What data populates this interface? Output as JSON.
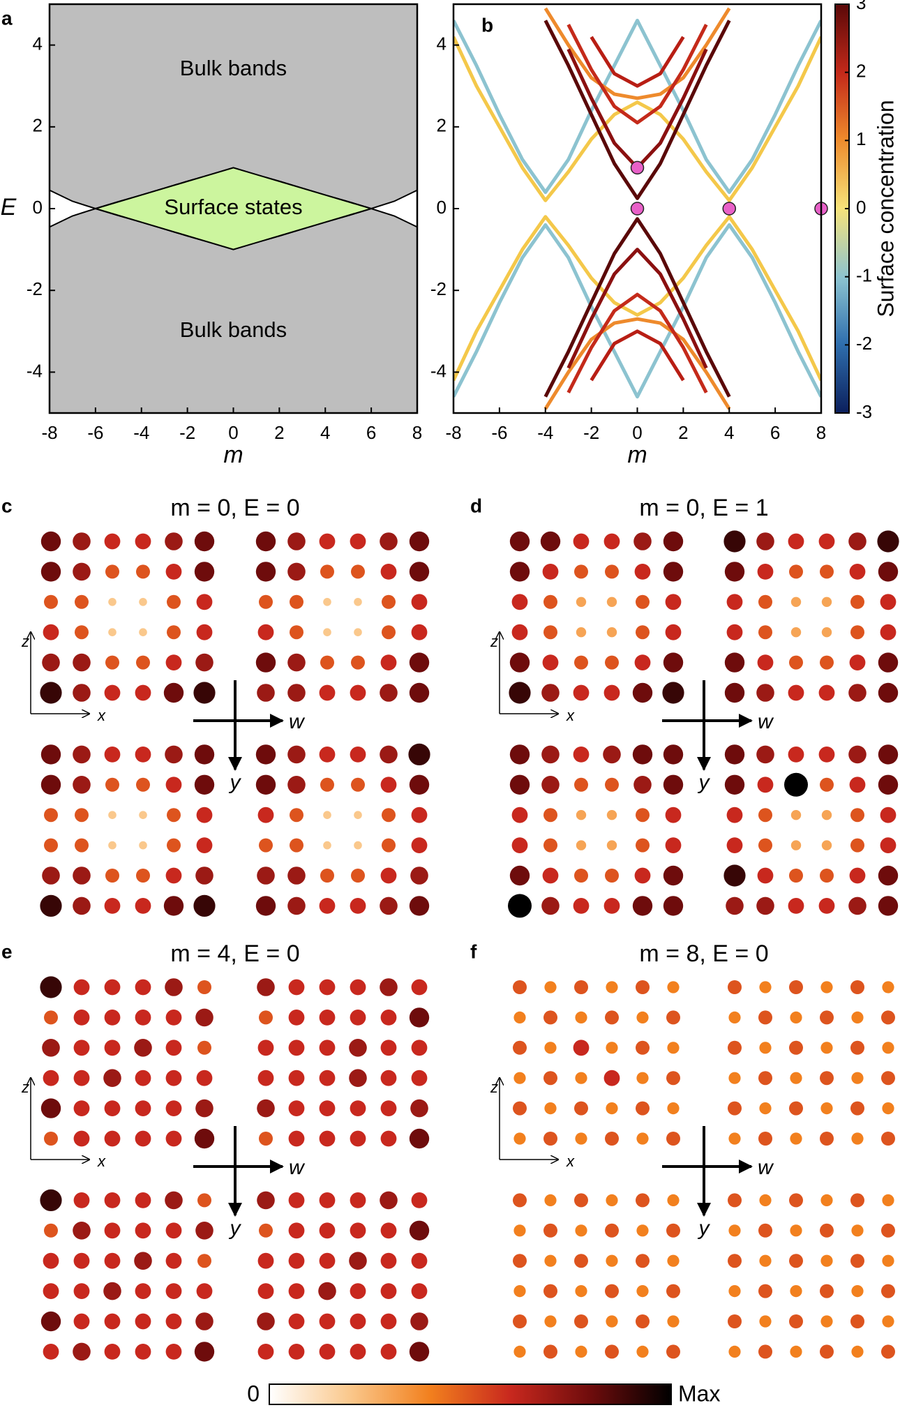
{
  "chart_data": [
    {
      "type": "phase",
      "panel_label": "a",
      "xlabel": "m",
      "ylabel": "E",
      "xlim": [
        -8,
        8
      ],
      "ylim": [
        -5,
        5
      ],
      "xticks": [
        -8,
        -6,
        -4,
        -2,
        0,
        2,
        4,
        6,
        8
      ],
      "yticks": [
        -4,
        -2,
        0,
        2,
        4
      ],
      "color": "#bebebe",
      "surface_color": "#ccf59e",
      "boundaries": [
        {
          "x": [
            -8,
            -7,
            -6,
            -5,
            -4,
            -3,
            -2,
            -1,
            0,
            1,
            2,
            3,
            4,
            5,
            6,
            7,
            8
          ],
          "values": [
            0.45,
            0.18,
            0,
            0.17,
            0.33,
            0.5,
            0.67,
            0.83,
            1,
            0.83,
            0.67,
            0.5,
            0.33,
            0.17,
            0,
            0.18,
            0.45
          ]
        },
        {
          "x": [
            -8,
            -7,
            -6,
            -5,
            -4,
            -3,
            -2,
            -1,
            0,
            1,
            2,
            3,
            4,
            5,
            6,
            7,
            8
          ],
          "values": [
            -0.45,
            -0.18,
            0,
            -0.17,
            -0.33,
            -0.5,
            -0.67,
            -0.83,
            -1,
            -0.83,
            -0.67,
            -0.5,
            -0.33,
            -0.17,
            0,
            -0.18,
            -0.45
          ]
        }
      ],
      "surface_states": {
        "x": [
          -6,
          0,
          6,
          0
        ],
        "values": [
          0,
          1,
          0,
          -1
        ]
      },
      "annotations": [
        "Bulk bands",
        "Surface states",
        "Bulk bands"
      ]
    },
    {
      "type": "bands",
      "panel_label": "b",
      "xlabel": "m",
      "xlim": [
        -8,
        8
      ],
      "ylim": [
        -5,
        5
      ],
      "xticks": [
        -8,
        -6,
        -4,
        -2,
        0,
        2,
        4,
        6,
        8
      ],
      "yticks": [
        -4,
        -2,
        0,
        2,
        4
      ],
      "x": [
        -8,
        -7,
        -6,
        -5,
        -4,
        -3,
        -2,
        -1,
        0,
        1,
        2,
        3,
        4,
        5,
        6,
        7,
        8
      ],
      "series": [
        {
          "color": "#8cc3d0",
          "values": [
            4.6,
            3.5,
            2.3,
            1.2,
            0.4,
            1.2,
            2.4,
            3.5,
            4.6,
            3.5,
            2.4,
            1.2,
            0.4,
            1.2,
            2.3,
            3.5,
            4.6
          ]
        },
        {
          "color": "#8cc3d0",
          "values": [
            -4.6,
            -3.5,
            -2.3,
            -1.2,
            -0.4,
            -1.2,
            -2.4,
            -3.5,
            -4.6,
            -3.5,
            -2.4,
            -1.2,
            -0.4,
            -1.2,
            -2.3,
            -3.5,
            -4.6
          ]
        },
        {
          "color": "#f4c84a",
          "values": [
            4.2,
            3.0,
            2.0,
            1.0,
            0.2,
            0.9,
            1.7,
            2.3,
            2.6,
            2.3,
            1.7,
            0.9,
            0.2,
            1.0,
            2.0,
            3.0,
            4.2
          ]
        },
        {
          "color": "#f4c84a",
          "values": [
            -4.2,
            -3.0,
            -2.0,
            -1.0,
            -0.2,
            -0.9,
            -1.7,
            -2.3,
            -2.6,
            -2.3,
            -1.7,
            -0.9,
            -0.2,
            -1.0,
            -2.0,
            -3.0,
            -4.2
          ]
        },
        {
          "color": "#ee8a2c",
          "values": [
            null,
            null,
            null,
            null,
            4.9,
            4.0,
            3.2,
            2.8,
            2.7,
            2.8,
            3.2,
            4.0,
            4.9,
            null,
            null,
            null,
            null
          ]
        },
        {
          "color": "#ee8a2c",
          "values": [
            null,
            null,
            null,
            null,
            -4.9,
            -4.0,
            -3.2,
            -2.8,
            -2.7,
            -2.8,
            -3.2,
            -4.0,
            -4.9,
            null,
            null,
            null,
            null
          ]
        },
        {
          "color": "#b81e14",
          "values": [
            null,
            null,
            null,
            null,
            null,
            null,
            4.2,
            3.3,
            3.0,
            3.3,
            4.2,
            null,
            null,
            null,
            null,
            null,
            null
          ]
        },
        {
          "color": "#b81e14",
          "values": [
            null,
            null,
            null,
            null,
            null,
            null,
            -4.2,
            -3.3,
            -3.0,
            -3.3,
            -4.2,
            null,
            null,
            null,
            null,
            null,
            null
          ]
        },
        {
          "color": "#c42a1a",
          "values": [
            null,
            null,
            null,
            null,
            null,
            4.5,
            3.4,
            2.5,
            2.1,
            2.5,
            3.4,
            4.5,
            null,
            null,
            null,
            null,
            null
          ]
        },
        {
          "color": "#c42a1a",
          "values": [
            null,
            null,
            null,
            null,
            null,
            -4.5,
            -3.4,
            -2.5,
            -2.1,
            -2.5,
            -3.4,
            -4.5,
            null,
            null,
            null,
            null,
            null
          ]
        },
        {
          "color": "#8b1010",
          "values": [
            null,
            null,
            null,
            null,
            null,
            3.9,
            2.7,
            1.6,
            1.0,
            1.6,
            2.7,
            3.9,
            null,
            null,
            null,
            null,
            null
          ]
        },
        {
          "color": "#8b1010",
          "values": [
            null,
            null,
            null,
            null,
            null,
            -3.9,
            -2.7,
            -1.6,
            -1.0,
            -1.6,
            -2.7,
            -3.9,
            null,
            null,
            null,
            null,
            null
          ]
        },
        {
          "color": "#5a0808",
          "values": [
            null,
            null,
            null,
            null,
            4.6,
            3.5,
            2.3,
            1.1,
            0.25,
            1.1,
            2.3,
            3.5,
            4.6,
            null,
            null,
            null,
            null
          ]
        },
        {
          "color": "#5a0808",
          "values": [
            null,
            null,
            null,
            null,
            -4.6,
            -3.5,
            -2.3,
            -1.1,
            -0.25,
            -1.1,
            -2.3,
            -3.5,
            -4.6,
            null,
            null,
            null,
            null
          ]
        }
      ],
      "points": {
        "x": [
          0,
          0,
          4,
          8
        ],
        "values": [
          1,
          0,
          0,
          0
        ],
        "color": "#e860c8"
      },
      "colorbar": {
        "label": "Surface concentration",
        "ylim": [
          -3,
          3
        ],
        "yticks": [
          -3,
          -2,
          -1,
          0,
          1,
          2,
          3
        ]
      }
    },
    {
      "type": "lattice",
      "panel_label": "c",
      "title": "m = 0, E = 0",
      "axis_labels": [
        "z",
        "x",
        "w",
        "y"
      ],
      "values": [
        [
          0.8,
          0.7,
          0.6,
          0.6,
          0.7,
          0.8,
          0.8,
          0.7,
          0.6,
          0.6,
          0.7,
          0.8
        ],
        [
          0.8,
          0.7,
          0.5,
          0.5,
          0.6,
          0.8,
          0.8,
          0.7,
          0.5,
          0.5,
          0.6,
          0.8
        ],
        [
          0.5,
          0.5,
          0.2,
          0.2,
          0.5,
          0.6,
          0.5,
          0.5,
          0.2,
          0.2,
          0.5,
          0.6
        ],
        [
          0.6,
          0.5,
          0.2,
          0.2,
          0.5,
          0.6,
          0.6,
          0.5,
          0.2,
          0.2,
          0.5,
          0.6
        ],
        [
          0.7,
          0.7,
          0.5,
          0.5,
          0.6,
          0.7,
          0.8,
          0.7,
          0.5,
          0.5,
          0.6,
          0.8
        ],
        [
          0.9,
          0.7,
          0.6,
          0.6,
          0.8,
          0.9,
          0.7,
          0.7,
          0.6,
          0.6,
          0.7,
          0.8
        ],
        [
          0.8,
          0.7,
          0.6,
          0.6,
          0.7,
          0.8,
          0.8,
          0.7,
          0.6,
          0.6,
          0.7,
          0.9
        ],
        [
          0.8,
          0.7,
          0.5,
          0.5,
          0.6,
          0.8,
          0.8,
          0.7,
          0.5,
          0.5,
          0.6,
          0.8
        ],
        [
          0.5,
          0.5,
          0.2,
          0.2,
          0.5,
          0.6,
          0.6,
          0.5,
          0.2,
          0.2,
          0.5,
          0.6
        ],
        [
          0.5,
          0.5,
          0.2,
          0.2,
          0.5,
          0.6,
          0.5,
          0.5,
          0.2,
          0.2,
          0.5,
          0.6
        ],
        [
          0.7,
          0.7,
          0.5,
          0.5,
          0.6,
          0.7,
          0.7,
          0.7,
          0.5,
          0.5,
          0.6,
          0.7
        ],
        [
          0.9,
          0.7,
          0.6,
          0.6,
          0.8,
          0.9,
          0.8,
          0.7,
          0.6,
          0.6,
          0.7,
          0.8
        ]
      ]
    },
    {
      "type": "lattice",
      "panel_label": "d",
      "title": "m = 0, E = 1",
      "axis_labels": [
        "z",
        "x",
        "w",
        "y"
      ],
      "values": [
        [
          0.8,
          0.8,
          0.6,
          0.6,
          0.7,
          0.8,
          0.9,
          0.7,
          0.6,
          0.6,
          0.7,
          0.9
        ],
        [
          0.8,
          0.6,
          0.5,
          0.5,
          0.6,
          0.8,
          0.8,
          0.6,
          0.5,
          0.5,
          0.6,
          0.8
        ],
        [
          0.6,
          0.5,
          0.3,
          0.3,
          0.5,
          0.6,
          0.6,
          0.5,
          0.3,
          0.3,
          0.5,
          0.6
        ],
        [
          0.6,
          0.5,
          0.3,
          0.3,
          0.5,
          0.6,
          0.6,
          0.5,
          0.3,
          0.3,
          0.5,
          0.6
        ],
        [
          0.8,
          0.6,
          0.5,
          0.5,
          0.6,
          0.8,
          0.8,
          0.6,
          0.5,
          0.5,
          0.6,
          0.8
        ],
        [
          0.9,
          0.7,
          0.6,
          0.6,
          0.8,
          0.9,
          0.8,
          0.7,
          0.6,
          0.6,
          0.7,
          0.8
        ],
        [
          0.8,
          0.7,
          0.6,
          0.7,
          0.8,
          0.8,
          0.8,
          0.7,
          0.6,
          0.6,
          0.7,
          0.8
        ],
        [
          0.8,
          0.7,
          0.5,
          0.5,
          0.7,
          0.8,
          0.8,
          0.6,
          1,
          0.5,
          0.6,
          0.8
        ],
        [
          0.6,
          0.5,
          0.3,
          0.3,
          0.5,
          0.6,
          0.6,
          0.5,
          0.3,
          0.3,
          0.5,
          0.6
        ],
        [
          0.6,
          0.5,
          0.3,
          0.3,
          0.5,
          0.6,
          0.6,
          0.5,
          0.3,
          0.3,
          0.5,
          0.6
        ],
        [
          0.8,
          0.6,
          0.5,
          0.5,
          0.6,
          0.8,
          0.9,
          0.6,
          0.5,
          0.5,
          0.6,
          0.8
        ],
        [
          1,
          0.7,
          0.6,
          0.6,
          0.8,
          0.8,
          0.7,
          0.7,
          0.6,
          0.6,
          0.7,
          0.8
        ]
      ]
    },
    {
      "type": "lattice",
      "panel_label": "e",
      "title": "m = 4, E = 0",
      "axis_labels": [
        "z",
        "x",
        "w",
        "y"
      ],
      "values": [
        [
          0.9,
          0.6,
          0.6,
          0.6,
          0.7,
          0.5,
          0.7,
          0.6,
          0.6,
          0.6,
          0.7,
          0.6
        ],
        [
          0.5,
          0.6,
          0.6,
          0.6,
          0.6,
          0.7,
          0.5,
          0.6,
          0.6,
          0.6,
          0.6,
          0.8
        ],
        [
          0.7,
          0.6,
          0.6,
          0.7,
          0.6,
          0.5,
          0.6,
          0.6,
          0.6,
          0.7,
          0.6,
          0.6
        ],
        [
          0.6,
          0.6,
          0.7,
          0.6,
          0.6,
          0.6,
          0.6,
          0.6,
          0.6,
          0.7,
          0.6,
          0.6
        ],
        [
          0.8,
          0.6,
          0.6,
          0.6,
          0.6,
          0.7,
          0.7,
          0.6,
          0.6,
          0.6,
          0.6,
          0.7
        ],
        [
          0.5,
          0.6,
          0.6,
          0.6,
          0.6,
          0.8,
          0.5,
          0.6,
          0.6,
          0.6,
          0.6,
          0.8
        ],
        [
          0.9,
          0.6,
          0.6,
          0.6,
          0.7,
          0.5,
          0.7,
          0.6,
          0.6,
          0.6,
          0.7,
          0.6
        ],
        [
          0.5,
          0.7,
          0.6,
          0.6,
          0.6,
          0.7,
          0.5,
          0.6,
          0.6,
          0.6,
          0.6,
          0.8
        ],
        [
          0.6,
          0.6,
          0.6,
          0.7,
          0.6,
          0.5,
          0.6,
          0.6,
          0.6,
          0.7,
          0.6,
          0.6
        ],
        [
          0.6,
          0.6,
          0.7,
          0.6,
          0.6,
          0.6,
          0.6,
          0.6,
          0.7,
          0.6,
          0.6,
          0.6
        ],
        [
          0.8,
          0.6,
          0.6,
          0.6,
          0.6,
          0.7,
          0.7,
          0.6,
          0.6,
          0.6,
          0.6,
          0.7
        ],
        [
          0.6,
          0.7,
          0.6,
          0.6,
          0.6,
          0.8,
          0.6,
          0.6,
          0.6,
          0.6,
          0.6,
          0.8
        ]
      ]
    },
    {
      "type": "lattice",
      "panel_label": "f",
      "title": "m = 8, E = 0",
      "axis_labels": [
        "z",
        "x",
        "w",
        "y"
      ],
      "values": [
        [
          0.5,
          0.4,
          0.5,
          0.4,
          0.5,
          0.4,
          0.5,
          0.4,
          0.5,
          0.4,
          0.5,
          0.4
        ],
        [
          0.4,
          0.5,
          0.4,
          0.5,
          0.4,
          0.5,
          0.4,
          0.5,
          0.4,
          0.5,
          0.4,
          0.5
        ],
        [
          0.5,
          0.4,
          0.6,
          0.4,
          0.5,
          0.4,
          0.5,
          0.4,
          0.5,
          0.4,
          0.5,
          0.4
        ],
        [
          0.4,
          0.5,
          0.4,
          0.6,
          0.4,
          0.5,
          0.4,
          0.5,
          0.4,
          0.5,
          0.4,
          0.5
        ],
        [
          0.5,
          0.4,
          0.5,
          0.4,
          0.5,
          0.4,
          0.5,
          0.4,
          0.5,
          0.4,
          0.5,
          0.4
        ],
        [
          0.4,
          0.5,
          0.4,
          0.5,
          0.4,
          0.5,
          0.4,
          0.5,
          0.4,
          0.5,
          0.4,
          0.5
        ],
        [
          0.5,
          0.4,
          0.5,
          0.4,
          0.5,
          0.4,
          0.5,
          0.4,
          0.5,
          0.4,
          0.5,
          0.4
        ],
        [
          0.4,
          0.5,
          0.4,
          0.5,
          0.4,
          0.5,
          0.4,
          0.5,
          0.4,
          0.5,
          0.4,
          0.5
        ],
        [
          0.5,
          0.4,
          0.5,
          0.4,
          0.5,
          0.4,
          0.5,
          0.4,
          0.5,
          0.4,
          0.5,
          0.4
        ],
        [
          0.4,
          0.5,
          0.4,
          0.5,
          0.4,
          0.5,
          0.4,
          0.5,
          0.4,
          0.5,
          0.4,
          0.5
        ],
        [
          0.5,
          0.4,
          0.5,
          0.4,
          0.5,
          0.4,
          0.5,
          0.4,
          0.5,
          0.4,
          0.5,
          0.4
        ],
        [
          0.4,
          0.5,
          0.4,
          0.5,
          0.4,
          0.5,
          0.4,
          0.5,
          0.4,
          0.5,
          0.4,
          0.5
        ]
      ]
    }
  ],
  "colorbar": {
    "min_label": "0",
    "max_label": "Max"
  }
}
